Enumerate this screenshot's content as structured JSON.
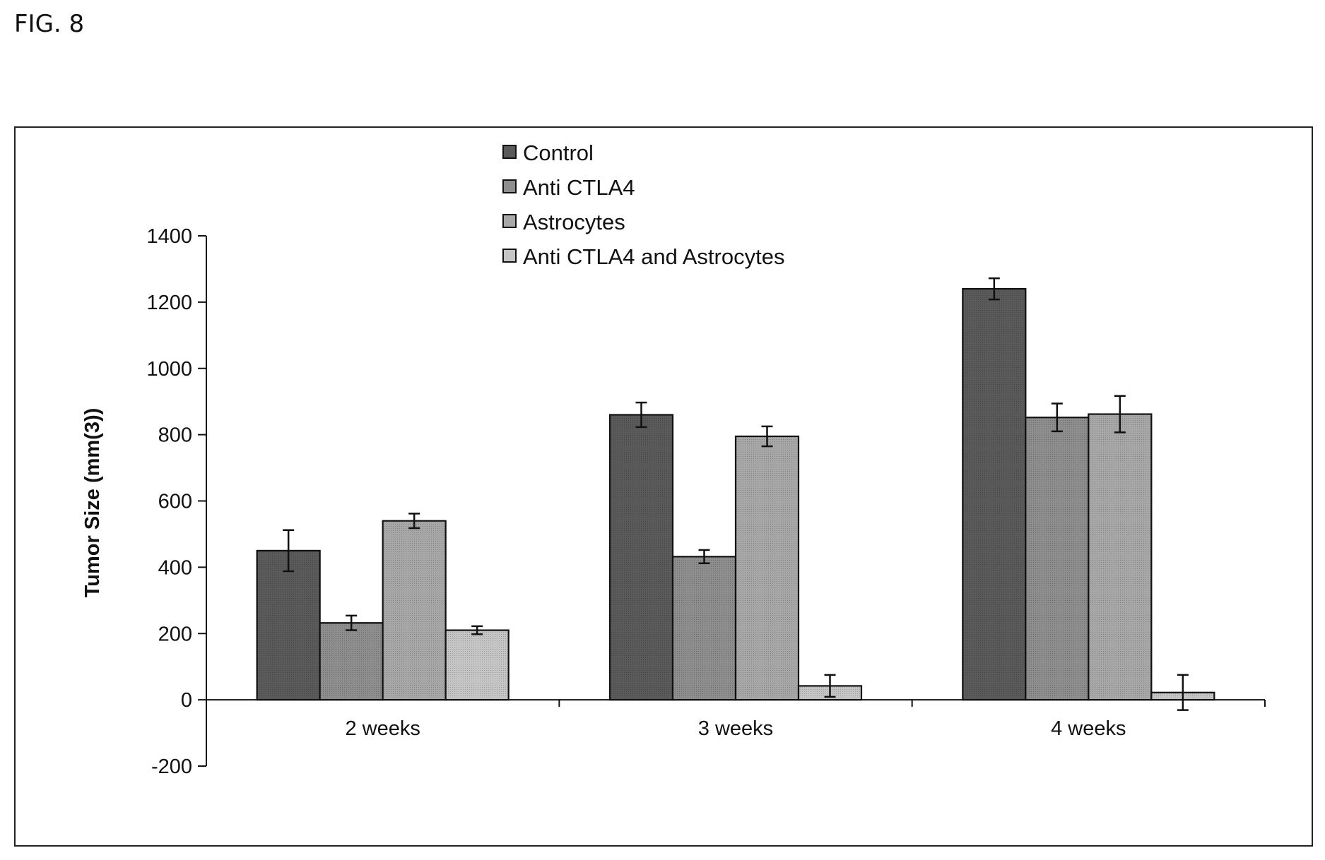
{
  "figure_label": "FIG. 8",
  "chart_data": {
    "type": "bar",
    "title": "",
    "xlabel": "",
    "ylabel": "Tumor  Size (mm(3))",
    "ylim": [
      -200,
      1400
    ],
    "yticks": [
      -200,
      0,
      200,
      400,
      600,
      800,
      1000,
      1200,
      1400
    ],
    "grid": false,
    "legend_position": "top-center",
    "categories": [
      "2 weeks",
      "3 weeks",
      "4 weeks"
    ],
    "series": [
      {
        "name": "Control",
        "color": "#5a5a5a",
        "values": [
          450,
          860,
          1240
        ],
        "errors": [
          62,
          37,
          32
        ]
      },
      {
        "name": "Anti CTLA4",
        "color": "#8e8e8e",
        "values": [
          232,
          432,
          852
        ],
        "errors": [
          22,
          20,
          42
        ]
      },
      {
        "name": "Astrocytes",
        "color": "#a8a8a8",
        "values": [
          540,
          795,
          862
        ],
        "errors": [
          22,
          30,
          55
        ]
      },
      {
        "name": "Anti CTLA4 and Astrocytes",
        "color": "#c6c6c6",
        "values": [
          210,
          42,
          22
        ],
        "errors": [
          12,
          33,
          53
        ]
      }
    ]
  }
}
